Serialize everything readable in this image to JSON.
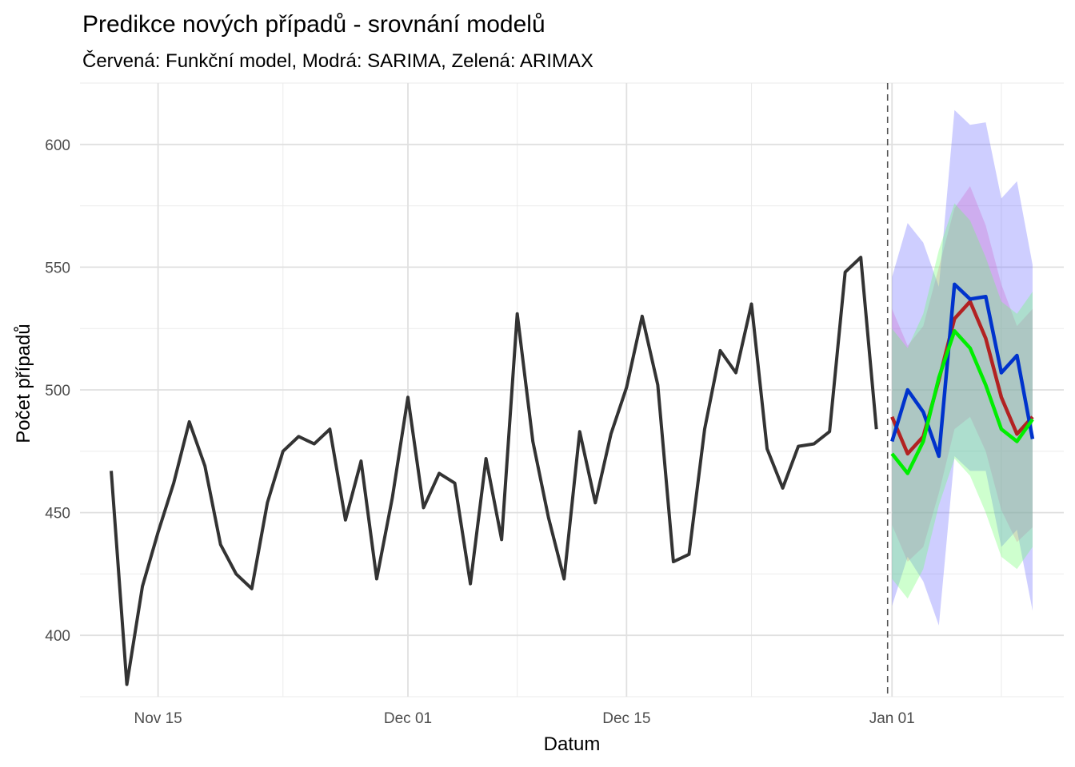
{
  "chart_data": {
    "type": "line",
    "title": "Predikce nových případů - srovnání modelů",
    "subtitle": "Červená: Funkční model, Modrá: SARIMA, Zelená: ARIMAX",
    "xlabel": "Datum",
    "ylabel": "Počet případů",
    "x_ticks": [
      "Nov 15",
      "Dec 01",
      "Dec 15",
      "Jan 01"
    ],
    "y_ticks": [
      400,
      450,
      500,
      550,
      600
    ],
    "ylim": [
      375,
      625
    ],
    "xlim": [
      "2019-11-10",
      "2020-01-12"
    ],
    "grid": true,
    "forecast_start_marker": "2019-12-31",
    "observed": {
      "start_date": "2019-11-12",
      "color": "#333333",
      "values": [
        467,
        380,
        420,
        442,
        462,
        487,
        469,
        437,
        425,
        419,
        454,
        475,
        481,
        478,
        484,
        447,
        471,
        423,
        456,
        497,
        452,
        466,
        462,
        421,
        472,
        439,
        531,
        479,
        448,
        423,
        483,
        454,
        482,
        501,
        530,
        502,
        430,
        433,
        484,
        516,
        507,
        535,
        476,
        460,
        477,
        478,
        483,
        548,
        554,
        484
      ]
    },
    "forecast": {
      "start_date": "2020-01-01",
      "series": [
        {
          "color": "#b22222",
          "band_color": "#ff69b4",
          "values": [
            489,
            474,
            481,
            504,
            529,
            536,
            521,
            497,
            482,
            489
          ],
          "lower": [
            445,
            430,
            436,
            458,
            484,
            489,
            475,
            451,
            438,
            444
          ],
          "upper": [
            533,
            518,
            526,
            550,
            574,
            583,
            567,
            543,
            526,
            533
          ]
        },
        {
          "color": "#0033cc",
          "band_color": "#6666ff",
          "values": [
            479,
            500,
            491,
            473,
            543,
            537,
            538,
            507,
            514,
            480
          ],
          "lower": [
            412,
            432,
            422,
            404,
            473,
            467,
            467,
            436,
            443,
            410
          ],
          "upper": [
            546,
            568,
            560,
            542,
            614,
            608,
            609,
            578,
            585,
            551
          ]
        },
        {
          "color": "#00ee00",
          "band_color": "#66ff66",
          "values": [
            474,
            466,
            479,
            505,
            524,
            517,
            502,
            484,
            479,
            488
          ],
          "lower": [
            423,
            415,
            427,
            453,
            472,
            465,
            450,
            432,
            427,
            436
          ],
          "upper": [
            525,
            517,
            531,
            557,
            576,
            569,
            554,
            536,
            531,
            540
          ]
        }
      ]
    }
  }
}
